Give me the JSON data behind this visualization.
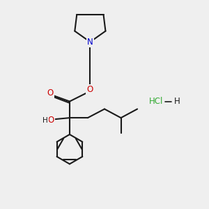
{
  "bg_color": "#efefef",
  "bond_color": "#1a1a1a",
  "oxygen_color": "#cc0000",
  "nitrogen_color": "#0000cc",
  "hcl_color": "#33aa33",
  "line_width": 1.5,
  "figsize": [
    3.0,
    3.0
  ],
  "dpi": 100,
  "xlim": [
    0,
    10
  ],
  "ylim": [
    0,
    10
  ]
}
